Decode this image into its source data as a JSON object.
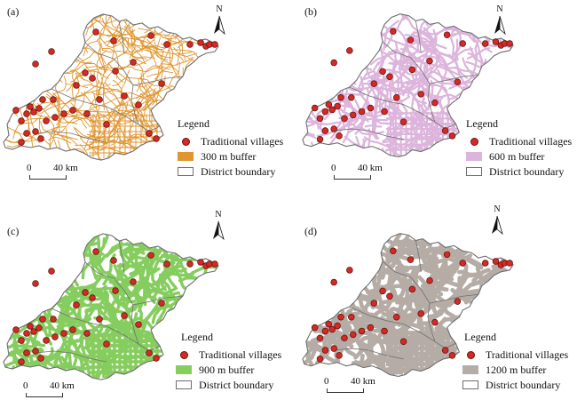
{
  "legend_title": "Legend",
  "villages_label": "Traditional villages",
  "boundary_label": "District boundary",
  "scale": {
    "zero": "0",
    "dist": "40 km"
  },
  "north": "N",
  "village_color": "#d42a23",
  "panels": [
    {
      "label": "(a)",
      "buffer_label": "300 m buffer",
      "buffer_color": "#e0952f"
    },
    {
      "label": "(b)",
      "buffer_label": "600 m buffer",
      "buffer_color": "#dcb4dc"
    },
    {
      "label": "(c)",
      "buffer_label": "900 m buffer",
      "buffer_color": "#86cd5f"
    },
    {
      "label": "(d)",
      "buffer_label": "1200 m buffer",
      "buffer_color": "#b5aca6"
    }
  ]
}
